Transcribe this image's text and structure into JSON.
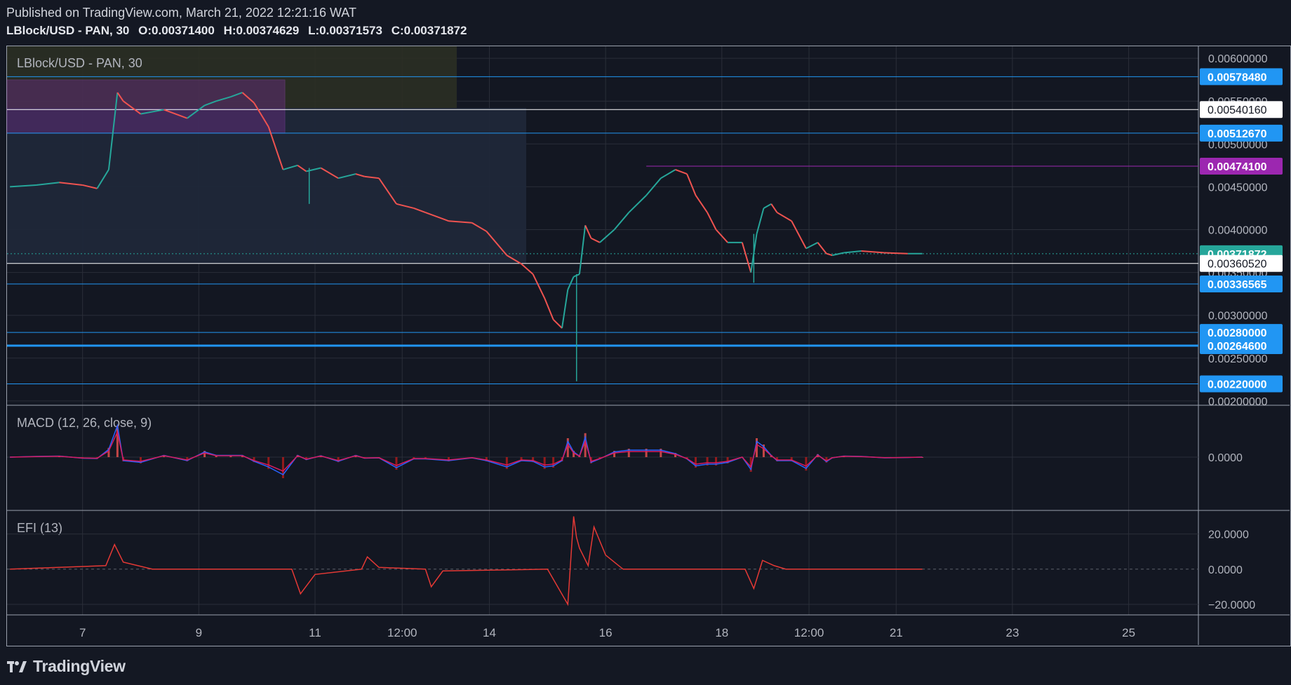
{
  "header": {
    "published": "Published on TradingView.com, March 21, 2022 12:21:16 WAT",
    "symbol": "LBlock/USD - PAN, 30",
    "open_label": "O:",
    "open": "0.00371400",
    "high_label": "H:",
    "high": "0.00374629",
    "low_label": "L:",
    "low": "0.00371573",
    "close_label": "C:",
    "close": "0.00371872"
  },
  "legend": {
    "main": "LBlock/USD - PAN, 30",
    "macd": "MACD (12, 26, close, 9)",
    "efi": "EFI (13)"
  },
  "footer": {
    "brand": "TradingView"
  },
  "colors": {
    "background": "#131722",
    "grid": "#2a2e39",
    "up": "#26a69a",
    "down": "#ef5350",
    "level_blue": "#2196f3",
    "level_purple": "#9c27b0",
    "macd_line": "#2962ff",
    "signal_line": "#d81b60",
    "efi_line": "#e53935"
  },
  "chart_data": [
    {
      "type": "line",
      "title": "LBlock/USD - PAN, 30",
      "ylim": [
        0.00195,
        0.00614
      ],
      "xlim": [
        5.7,
        26.2
      ],
      "x_ticks": [
        {
          "x": 7,
          "label": "7"
        },
        {
          "x": 9,
          "label": "9"
        },
        {
          "x": 11,
          "label": "11"
        },
        {
          "x": 12.5,
          "label": "12:00"
        },
        {
          "x": 14,
          "label": "14"
        },
        {
          "x": 16,
          "label": "16"
        },
        {
          "x": 18,
          "label": "18"
        },
        {
          "x": 19.5,
          "label": "12:00"
        },
        {
          "x": 21,
          "label": "21"
        },
        {
          "x": 23,
          "label": "23"
        },
        {
          "x": 25,
          "label": "25"
        }
      ],
      "y_ticks": [
        "0.00600000",
        "0.00550000",
        "0.00500000",
        "0.00450000",
        "0.00400000",
        "0.00350000",
        "0.00300000",
        "0.00250000",
        "0.00200000"
      ],
      "price_series": {
        "x": [
          5.75,
          6.2,
          6.6,
          7.0,
          7.25,
          7.45,
          7.6,
          7.7,
          8.0,
          8.4,
          8.8,
          9.1,
          9.3,
          9.55,
          9.75,
          9.95,
          10.2,
          10.45,
          10.7,
          10.85,
          11.1,
          11.4,
          11.7,
          11.85,
          12.1,
          12.4,
          12.7,
          12.9,
          13.3,
          13.7,
          13.95,
          14.3,
          14.55,
          14.75,
          14.95,
          15.1,
          15.25,
          15.35,
          15.45,
          15.55,
          15.65,
          15.75,
          15.9,
          16.15,
          16.4,
          16.7,
          16.95,
          17.2,
          17.4,
          17.55,
          17.75,
          17.9,
          18.1,
          18.35,
          18.5,
          18.6,
          18.72,
          18.85,
          18.95,
          19.2,
          19.45,
          19.65,
          19.8,
          19.9,
          20.1,
          20.4,
          20.8,
          21.2,
          21.45
        ],
        "y": [
          0.0045,
          0.00452,
          0.00455,
          0.00452,
          0.00448,
          0.0047,
          0.0056,
          0.0055,
          0.00535,
          0.0054,
          0.0053,
          0.00545,
          0.0055,
          0.00555,
          0.0056,
          0.00548,
          0.0052,
          0.0047,
          0.00475,
          0.00468,
          0.00472,
          0.0046,
          0.00465,
          0.00462,
          0.0046,
          0.0043,
          0.00425,
          0.0042,
          0.0041,
          0.00408,
          0.00398,
          0.0037,
          0.0036,
          0.00348,
          0.0032,
          0.00295,
          0.00285,
          0.0033,
          0.00345,
          0.00348,
          0.00405,
          0.0039,
          0.00385,
          0.004,
          0.0042,
          0.0044,
          0.0046,
          0.0047,
          0.00465,
          0.0044,
          0.0042,
          0.004,
          0.00385,
          0.00385,
          0.0035,
          0.00395,
          0.00425,
          0.0043,
          0.0042,
          0.0041,
          0.00378,
          0.00385,
          0.00372,
          0.0037,
          0.00373,
          0.00375,
          0.00373,
          0.00372,
          0.00372
        ],
        "low_wicks": [
          {
            "x": 15.5,
            "y": 0.00223
          },
          {
            "x": 18.55,
            "y": 0.00338
          },
          {
            "x": 10.9,
            "y": 0.0043
          }
        ]
      },
      "levels": [
        {
          "price": 0.0057848,
          "label": "0.00578480",
          "style": "blue"
        },
        {
          "price": 0.0054016,
          "label": "0.00540160",
          "style": "white"
        },
        {
          "price": 0.0051267,
          "label": "0.00512670",
          "style": "blue"
        },
        {
          "price": 0.004741,
          "label": "0.00474100",
          "style": "purple"
        },
        {
          "price": 0.00371872,
          "label": "0.00371872",
          "style": "current"
        },
        {
          "price": 0.0036052,
          "label": "0.00360520",
          "style": "white"
        },
        {
          "price": 0.00336565,
          "label": "0.00336565",
          "style": "blue"
        },
        {
          "price": 0.0028,
          "label": "0.00280000",
          "style": "blue"
        },
        {
          "price": 0.002646,
          "label": "0.00264600",
          "style": "blue-thick"
        },
        {
          "price": 0.0022,
          "label": "0.00220000",
          "style": "blue"
        }
      ]
    },
    {
      "type": "line",
      "title": "MACD (12, 26, close, 9)",
      "y_ticks": [
        "0.0000"
      ]
    },
    {
      "type": "line",
      "title": "EFI (13)",
      "ylim": [
        -26,
        33
      ],
      "y_ticks": [
        "20.0000",
        "0.0000",
        "−20.0000"
      ],
      "efi_series": {
        "x": [
          5.75,
          7.4,
          7.55,
          7.7,
          8.2,
          10.6,
          10.75,
          11.0,
          11.8,
          11.9,
          12.1,
          12.9,
          13.0,
          13.2,
          15.0,
          15.35,
          15.45,
          15.5,
          15.55,
          15.7,
          15.8,
          16.0,
          16.3,
          18.4,
          18.55,
          18.7,
          18.9,
          19.1,
          21.45
        ],
        "y": [
          0,
          2,
          14,
          4,
          0,
          0,
          -14,
          -3,
          0,
          7,
          1,
          0,
          -10,
          -1,
          0,
          -20,
          30,
          18,
          12,
          2,
          24,
          8,
          0,
          0,
          -11,
          5,
          2,
          0,
          0
        ]
      }
    }
  ]
}
